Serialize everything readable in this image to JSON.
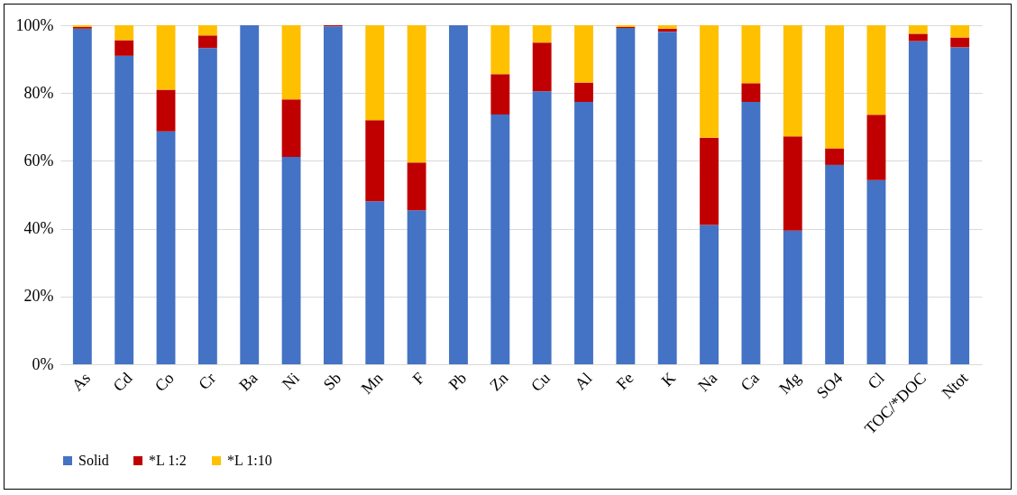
{
  "chart_data": {
    "type": "bar",
    "stacked": true,
    "categories": [
      "As",
      "Cd",
      "Co",
      "Cr",
      "Ba",
      "Ni",
      "Sb",
      "Mn",
      "F",
      "Pb",
      "Zn",
      "Cu",
      "Al",
      "Fe",
      "K",
      "Na",
      "Ca",
      "Mg",
      "SO4",
      "Cl",
      "TOC/*DOC",
      "Ntot"
    ],
    "series": [
      {
        "name": "Solid",
        "color": "#4472c4",
        "values": [
          99.0,
          91.0,
          68.7,
          93.3,
          100,
          61.2,
          99.7,
          48.1,
          45.4,
          100,
          73.7,
          80.5,
          77.4,
          99.2,
          98.1,
          41.1,
          77.4,
          39.4,
          58.8,
          54.3,
          95.3,
          93.5
        ]
      },
      {
        "name": "*L 1:2",
        "color": "#c00000",
        "values": [
          0.5,
          4.6,
          12.3,
          3.7,
          0,
          16.9,
          0.3,
          23.9,
          14.1,
          0,
          11.9,
          14.4,
          5.7,
          0.3,
          0.9,
          25.7,
          5.5,
          27.8,
          4.9,
          19.3,
          2.2,
          2.9
        ]
      },
      {
        "name": "*L 1:10",
        "color": "#ffc000",
        "values": [
          0.5,
          4.4,
          19.0,
          3.0,
          0,
          21.9,
          0,
          28.0,
          40.5,
          0,
          14.4,
          5.1,
          16.9,
          0.5,
          1.0,
          33.2,
          17.1,
          32.8,
          36.3,
          26.4,
          2.5,
          3.6
        ]
      }
    ],
    "ylim": [
      0,
      100
    ],
    "yticks": [
      {
        "value": 0,
        "label": "0%"
      },
      {
        "value": 20,
        "label": "20%"
      },
      {
        "value": 40,
        "label": "40%"
      },
      {
        "value": 60,
        "label": "60%"
      },
      {
        "value": 80,
        "label": "80%"
      },
      {
        "value": 100,
        "label": "100%"
      }
    ],
    "grid": "y",
    "legend": "bottom"
  }
}
